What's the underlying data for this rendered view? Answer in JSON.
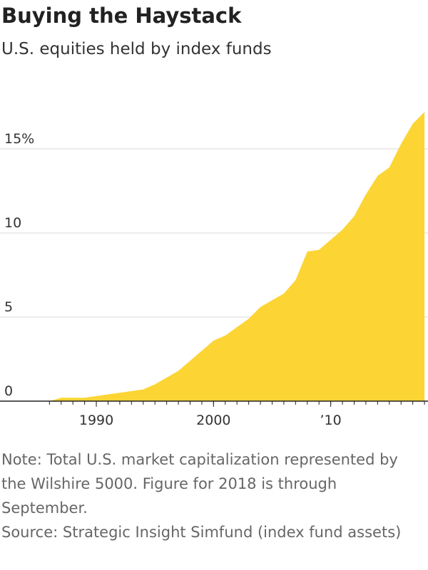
{
  "chart_data": {
    "type": "area",
    "title": "Buying the Haystack",
    "subtitle": "U.S. equities held by index funds",
    "x": [
      1986,
      1987,
      1988,
      1989,
      1990,
      1991,
      1992,
      1993,
      1994,
      1995,
      1996,
      1997,
      1998,
      1999,
      2000,
      2001,
      2002,
      2003,
      2004,
      2005,
      2006,
      2007,
      2008,
      2009,
      2010,
      2011,
      2012,
      2013,
      2014,
      2015,
      2016,
      2017,
      2018
    ],
    "values": [
      0,
      0.2,
      0.2,
      0.2,
      0.3,
      0.4,
      0.5,
      0.6,
      0.7,
      1.0,
      1.4,
      1.8,
      2.4,
      3.0,
      3.6,
      3.9,
      4.4,
      4.9,
      5.6,
      6.0,
      6.4,
      7.2,
      8.9,
      9.0,
      9.6,
      10.2,
      11.0,
      12.3,
      13.4,
      13.9,
      15.3,
      16.5,
      17.2
    ],
    "color": "#fcd535",
    "xlim": [
      1981.78,
      2018.3
    ],
    "xticks": [
      1990,
      2000,
      {
        "value": 2010,
        "label": "’10"
      }
    ],
    "ylim": [
      0,
      17.5
    ],
    "yticks": [
      0,
      5,
      10,
      {
        "value": 15,
        "label": "15%"
      }
    ],
    "grid": true,
    "notes": [
      "Note: Total U.S. market capitalization represented by the Wilshire 5000. Figure for 2018 is through September.",
      "Source: Strategic Insight Simfund (index fund assets)"
    ]
  }
}
